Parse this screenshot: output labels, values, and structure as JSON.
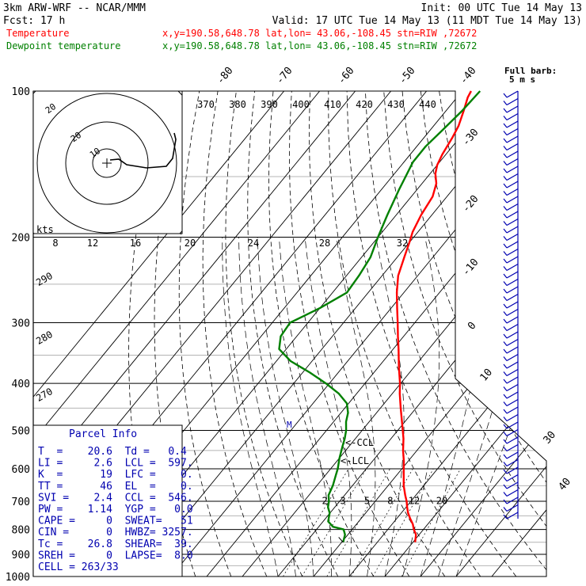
{
  "header": {
    "model": "3km ARW-WRF -- NCAR/MMM",
    "init": "Init: 00 UTC Tue 14 May 13",
    "fcst": "Fcst:   17 h",
    "valid": "Valid: 17 UTC Tue 14 May 13 (11 MDT Tue 14 May 13)",
    "temp_label": "Temperature",
    "temp_info": "x,y=190.58,648.78   lat,lon= 43.06,-108.45  stn=RIW ,72672",
    "dew_label": "Dewpoint temperature",
    "dew_info": "x,y=190.58,648.78   lat,lon= 43.06,-108.45  stn=RIW ,72672",
    "barb_legend_1": "Full barb:",
    "barb_legend_2": "5 m s"
  },
  "colors": {
    "temperature": "#ff0000",
    "dewpoint": "#008000",
    "parcel_text": "#0000b0",
    "barbs": "#0000b0",
    "axes": "#000000",
    "gridline": "#a0a0a0"
  },
  "chart_data": {
    "type": "line",
    "subtype": "skew-T log-P sounding",
    "y_axis": {
      "scale": "log",
      "direction": "reversed",
      "range": [
        1000,
        100
      ],
      "tick_labels": [
        "100",
        "200",
        "300",
        "400",
        "500",
        "600",
        "700",
        "800",
        "900",
        "1000"
      ]
    },
    "isotherm_labels": [
      "-80",
      "-70",
      "-60",
      "-50",
      "-40",
      "-30",
      "-20",
      "-10",
      "0",
      "10",
      "30",
      "40"
    ],
    "mixing_ratio_labels": [
      "2",
      "3",
      "5",
      "8",
      "12",
      "20"
    ],
    "theta_e_labels": [
      "370",
      "380",
      "390",
      "400",
      "410",
      "420",
      "430",
      "440"
    ],
    "theta_labels": [
      "290",
      "280",
      "270"
    ],
    "hodograph": {
      "speed_axis_label": "kts",
      "speed_labels": [
        "8",
        "12",
        "16",
        "20",
        "24",
        "28",
        "32"
      ],
      "ring_labels": [
        "20",
        "10"
      ]
    },
    "series": [
      {
        "name": "Temperature",
        "points": [
          [
            850,
            20.6
          ],
          [
            820,
            19.1
          ],
          [
            800,
            17.3
          ],
          [
            780,
            15.8
          ],
          [
            760,
            13.8
          ],
          [
            740,
            11.9
          ],
          [
            720,
            10.3
          ],
          [
            700,
            8.8
          ],
          [
            680,
            7.0
          ],
          [
            650,
            4.4
          ],
          [
            620,
            2.1
          ],
          [
            600,
            0.5
          ],
          [
            580,
            -1.1
          ],
          [
            550,
            -3.9
          ],
          [
            520,
            -6.5
          ],
          [
            500,
            -8.6
          ],
          [
            480,
            -10.8
          ],
          [
            450,
            -14.3
          ],
          [
            420,
            -17.9
          ],
          [
            400,
            -20.2
          ],
          [
            370,
            -24.3
          ],
          [
            340,
            -28.5
          ],
          [
            320,
            -31.6
          ],
          [
            300,
            -34.8
          ],
          [
            280,
            -38.3
          ],
          [
            260,
            -42.0
          ],
          [
            240,
            -45.5
          ],
          [
            220,
            -48.0
          ],
          [
            205,
            -50.0
          ],
          [
            195,
            -51.5
          ],
          [
            180,
            -53.0
          ],
          [
            165,
            -54.0
          ],
          [
            155,
            -56.0
          ],
          [
            148,
            -58.5
          ],
          [
            142,
            -60.0
          ],
          [
            135,
            -61.0
          ],
          [
            125,
            -62.0
          ],
          [
            118,
            -63.0
          ],
          [
            110,
            -65.0
          ],
          [
            103,
            -67.0
          ],
          [
            100,
            -67.5
          ]
        ]
      },
      {
        "name": "Dewpoint temperature",
        "points": [
          [
            850,
            0.4
          ],
          [
            820,
            -0.8
          ],
          [
            800,
            -2.4
          ],
          [
            790,
            -6.0
          ],
          [
            770,
            -8.6
          ],
          [
            740,
            -10.1
          ],
          [
            720,
            -11.9
          ],
          [
            700,
            -13.0
          ],
          [
            680,
            -14.5
          ],
          [
            650,
            -15.5
          ],
          [
            620,
            -17.0
          ],
          [
            600,
            -18.0
          ],
          [
            570,
            -20.0
          ],
          [
            540,
            -21.8
          ],
          [
            520,
            -23.0
          ],
          [
            500,
            -24.5
          ],
          [
            480,
            -26.5
          ],
          [
            460,
            -28.0
          ],
          [
            440,
            -30.5
          ],
          [
            420,
            -35.0
          ],
          [
            400,
            -41.0
          ],
          [
            380,
            -48.0
          ],
          [
            360,
            -56.0
          ],
          [
            340,
            -62.0
          ],
          [
            320,
            -64.5
          ],
          [
            300,
            -65.0
          ],
          [
            280,
            -60.0
          ],
          [
            260,
            -56.0
          ],
          [
            240,
            -56.5
          ],
          [
            220,
            -57.5
          ],
          [
            200,
            -60.0
          ],
          [
            180,
            -62.5
          ],
          [
            160,
            -65.0
          ],
          [
            140,
            -67.5
          ],
          [
            130,
            -67.5
          ],
          [
            120,
            -66.5
          ],
          [
            110,
            -65.5
          ],
          [
            100,
            -65.0
          ]
        ]
      }
    ],
    "annotations": [
      "<-CCL",
      "<-LCL"
    ]
  },
  "parcel": {
    "title": "Parcel Info",
    "rows": [
      "T  =    20.6  Td =   0.4",
      "LI =     2.6  LCL =  597.",
      "K  =      19  LFC =    0.",
      "TT =      46  EL  =    0.",
      "SVI =    2.4  CCL =  546.",
      "PW =    1.14  YGP =   0.0",
      "CAPE =     0  SWEAT=   51",
      "CIN =      0  HWBZ= 3257.",
      "Tc =    26.8  SHEAR=  39.",
      "SREH =     0  LAPSE=  8.0",
      "CELL = 263/33"
    ]
  }
}
